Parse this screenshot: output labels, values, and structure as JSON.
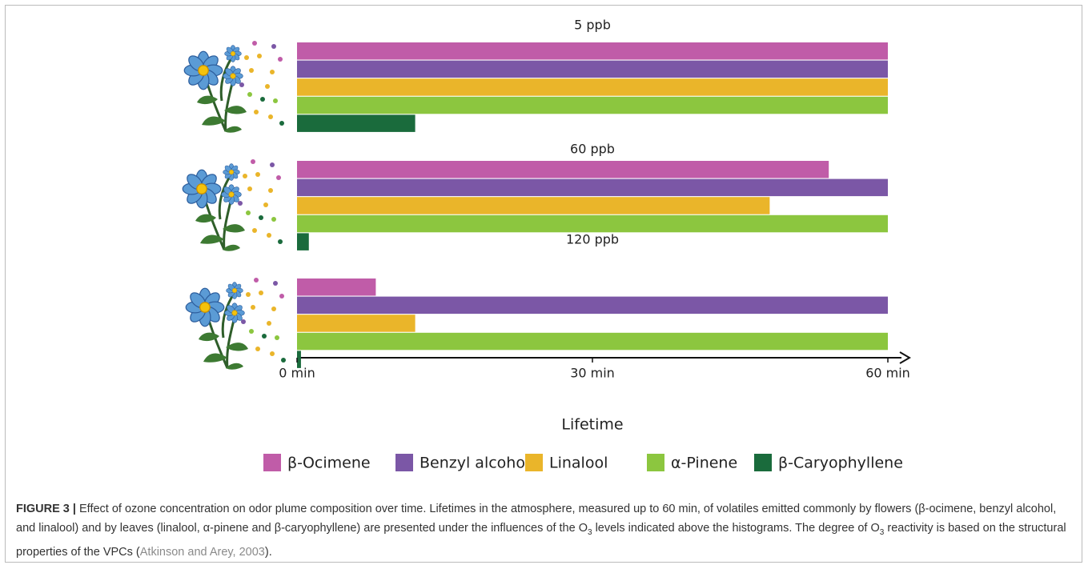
{
  "chart_data": {
    "type": "bar",
    "orientation": "horizontal",
    "categories": [
      "5 ppb",
      "60 ppb",
      "120 ppb"
    ],
    "series": [
      {
        "name": "β-Ocimene",
        "color": "#c05ca8",
        "values": [
          60,
          54,
          8
        ]
      },
      {
        "name": "Benzyl alcohol",
        "color": "#7b57a6",
        "values": [
          60,
          60,
          60
        ]
      },
      {
        "name": "Linalool",
        "color": "#eab52a",
        "values": [
          60,
          48,
          12
        ]
      },
      {
        "name": "α-Pinene",
        "color": "#8cc63f",
        "values": [
          60,
          60,
          60
        ]
      },
      {
        "name": "β-Caryophyllene",
        "color": "#1a6b3c",
        "values": [
          12,
          1.2,
          0.4
        ]
      }
    ],
    "xlabel": "Lifetime",
    "xlim": [
      0,
      60
    ],
    "xticks": [
      {
        "value": 0,
        "label": "0 min"
      },
      {
        "value": 30,
        "label": "30 min"
      },
      {
        "value": 60,
        "label": "60 min"
      }
    ],
    "grid": false
  },
  "caption": {
    "label": "FIGURE 3 |",
    "parts": [
      "Effect of ozone concentration on odor plume composition over time. Lifetimes in the atmosphere, measured up to 60 min, of volatiles emitted commonly by flowers (β-ocimene, benzyl alcohol, and linalool) and by leaves (linalool, α-pinene and β-caryophyllene) are presented under the influences of the O",
      "3",
      " levels indicated above the histograms. The degree of O",
      "3",
      " reactivity is based on the structural properties of the VPCs (",
      "Atkinson and Arey, 2003",
      ")."
    ]
  }
}
